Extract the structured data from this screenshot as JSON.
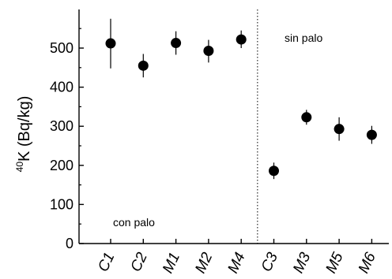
{
  "chart_data": {
    "type": "scatter",
    "categories": [
      "C1",
      "C2",
      "M1",
      "M2",
      "M4",
      "C3",
      "M3",
      "M5",
      "M6"
    ],
    "values": [
      512,
      455,
      513,
      493,
      522,
      186,
      323,
      293,
      278
    ],
    "error_low": [
      448,
      425,
      483,
      463,
      500,
      165,
      304,
      263,
      255
    ],
    "error_high": [
      575,
      485,
      543,
      521,
      545,
      207,
      342,
      323,
      301
    ],
    "ylabel_sup": "40",
    "ylabel_main": "K (Bq/kg)",
    "ylim": [
      0,
      560
    ],
    "yticks": [
      0,
      100,
      200,
      300,
      400,
      500
    ],
    "ytick_labels": [
      "0",
      "100",
      "200",
      "300",
      "400",
      "500"
    ],
    "divider_after_index": 4,
    "annotations": {
      "left": "con palo",
      "right": "sin palo"
    },
    "grid": false,
    "marker_color": "#000000"
  }
}
